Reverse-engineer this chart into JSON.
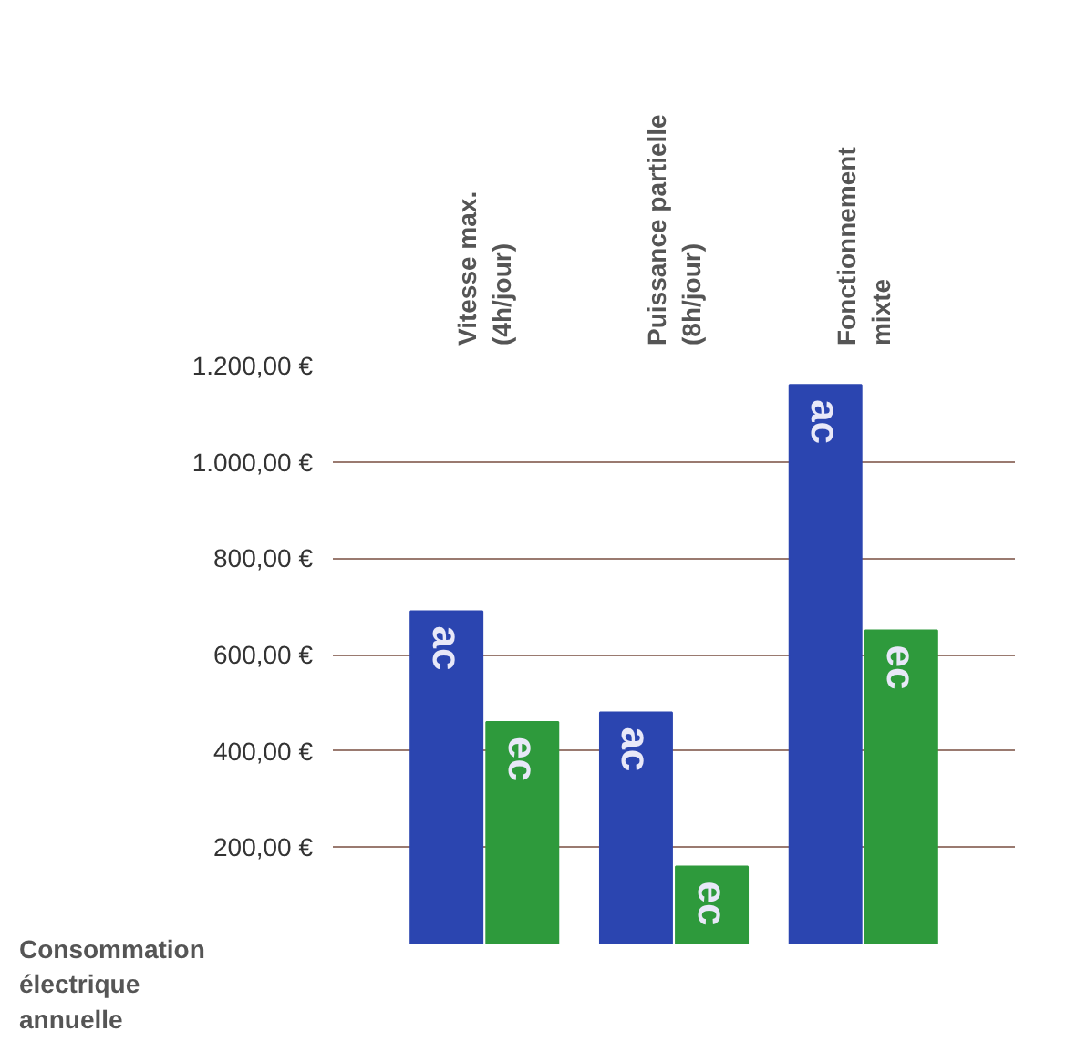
{
  "chart_data": {
    "type": "bar",
    "ylabel": "Consommation électrique annuelle",
    "categories": [
      "Vitesse max.\n(4h/jour)",
      "Puissance partielle\n(8h/jour)",
      "Fonctionnement\nmixte"
    ],
    "series": [
      {
        "name": "ac",
        "color": "#2b45b0",
        "values": [
          690,
          480,
          1160
        ]
      },
      {
        "name": "ec",
        "color": "#2e9a3c",
        "values": [
          460,
          160,
          650
        ]
      }
    ],
    "ylim": [
      0,
      1200
    ],
    "yticks": [
      {
        "value": 200,
        "label": "200,00 €"
      },
      {
        "value": 400,
        "label": "400,00 €"
      },
      {
        "value": 600,
        "label": "600,00 €"
      },
      {
        "value": 800,
        "label": "800,00 €"
      },
      {
        "value": 1000,
        "label": "1.000,00 €"
      },
      {
        "value": 1200,
        "label": "1.200,00 €"
      }
    ],
    "grid": "y"
  }
}
